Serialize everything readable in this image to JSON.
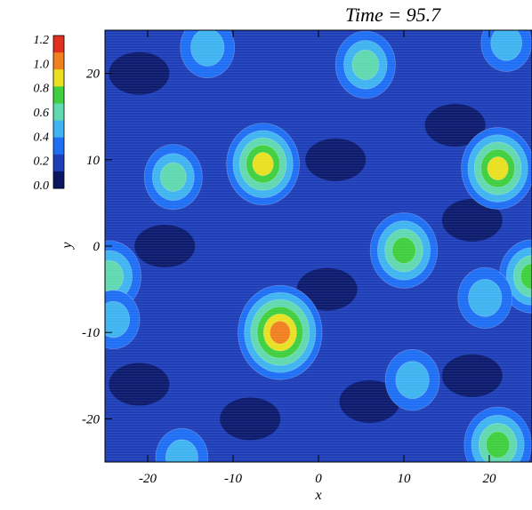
{
  "chart_data": {
    "type": "heatmap",
    "title": "Time = 95.7",
    "xlabel": "x",
    "ylabel": "y",
    "xlim": [
      -25,
      25
    ],
    "ylim": [
      -25,
      25
    ],
    "x_ticks": [
      -20,
      -10,
      0,
      10,
      20
    ],
    "y_ticks": [
      -20,
      -10,
      0,
      10,
      20
    ],
    "colorbar": {
      "levels": [
        0.0,
        0.2,
        0.4,
        0.6,
        0.8,
        1.0,
        1.2
      ],
      "tick_labels": [
        "0.0",
        "0.2",
        "0.4",
        "0.6",
        "0.8",
        "1.0",
        "1.2"
      ],
      "colors": [
        "#0a1660",
        "#1f3fb8",
        "#1f6ff5",
        "#3fb4f0",
        "#60d8b0",
        "#3fcf3f",
        "#e8e020",
        "#f08020",
        "#e03020"
      ]
    },
    "peaks": [
      {
        "x": -17,
        "y": 8,
        "value": 0.55
      },
      {
        "x": -6.5,
        "y": 9.5,
        "value": 0.95
      },
      {
        "x": 21,
        "y": 9,
        "value": 0.95
      },
      {
        "x": 10,
        "y": -0.5,
        "value": 0.8
      },
      {
        "x": -4.5,
        "y": -10,
        "value": 1.25
      },
      {
        "x": 5.5,
        "y": 21,
        "value": 0.6
      },
      {
        "x": -13,
        "y": 23,
        "value": 0.45
      },
      {
        "x": 21,
        "y": -23,
        "value": 0.8
      },
      {
        "x": 11,
        "y": -15.5,
        "value": 0.45
      },
      {
        "x": 25,
        "y": -3.5,
        "value": 0.75
      },
      {
        "x": -24.5,
        "y": -3.5,
        "value": 0.7
      },
      {
        "x": -24,
        "y": -8.5,
        "value": 0.4
      },
      {
        "x": 19.5,
        "y": -6,
        "value": 0.45
      },
      {
        "x": 22,
        "y": 23.5,
        "value": 0.35
      },
      {
        "x": -16,
        "y": -24.5,
        "value": 0.4
      }
    ],
    "lows": [
      {
        "x": -21,
        "y": 20
      },
      {
        "x": 2,
        "y": 10
      },
      {
        "x": -18,
        "y": 0
      },
      {
        "x": 1,
        "y": -5
      },
      {
        "x": -21,
        "y": -16
      },
      {
        "x": -8,
        "y": -20
      },
      {
        "x": 6,
        "y": -18
      },
      {
        "x": 16,
        "y": 14
      },
      {
        "x": 18,
        "y": 3
      },
      {
        "x": 18,
        "y": -15
      }
    ]
  }
}
